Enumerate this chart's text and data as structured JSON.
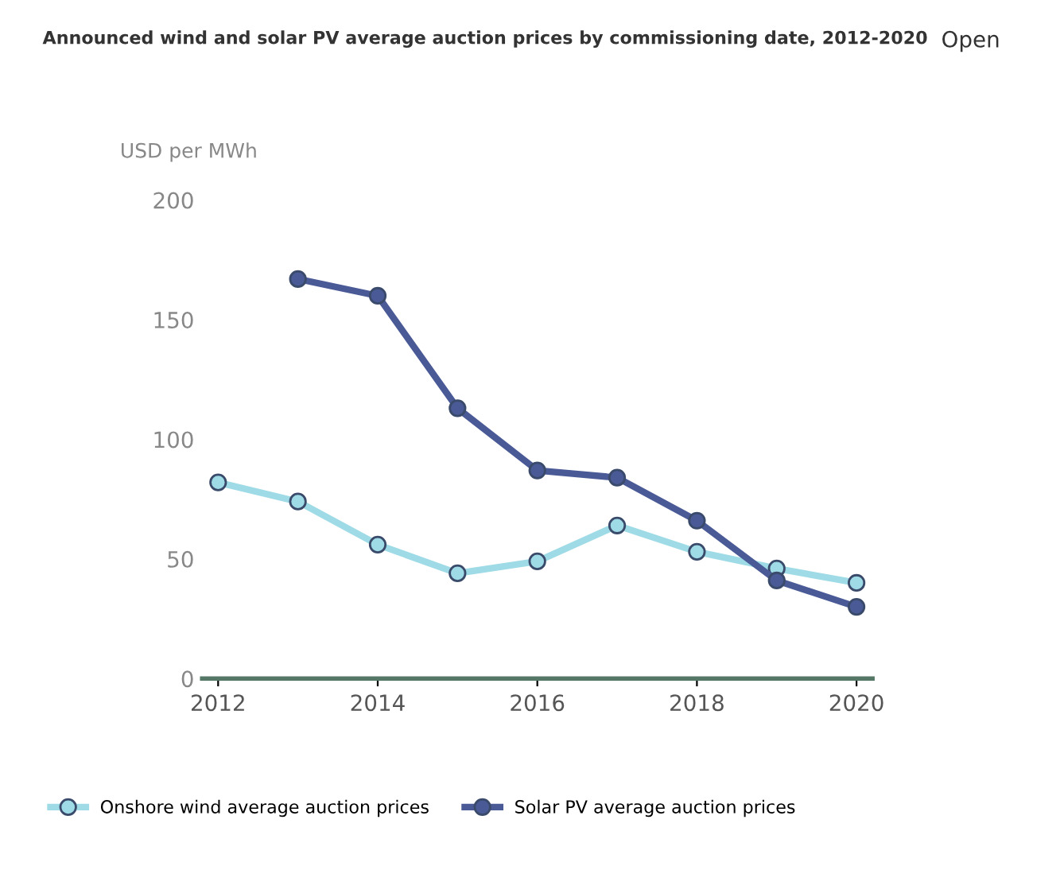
{
  "chart_data": {
    "type": "line",
    "title": "Announced wind and solar PV average auction prices by commissioning date, 2012-2020",
    "ylabel": "USD per MWh",
    "x": [
      2012,
      2013,
      2014,
      2015,
      2016,
      2017,
      2018,
      2019,
      2020
    ],
    "series": [
      {
        "name": "Onshore wind average auction prices",
        "color": "#9fdbe6",
        "values": [
          82,
          74,
          56,
          44,
          49,
          64,
          53,
          46,
          40
        ]
      },
      {
        "name": "Solar PV average auction prices",
        "color": "#4a5a96",
        "values": [
          null,
          167,
          160,
          113,
          87,
          84,
          66,
          41,
          30
        ]
      }
    ],
    "xlim": [
      2011.8,
      2020.2
    ],
    "xticks": [
      2012,
      2014,
      2016,
      2018,
      2020
    ],
    "ylim": [
      0,
      200
    ],
    "yticks": [
      0,
      50,
      100,
      150,
      200
    ],
    "grid": false,
    "legend": "bottom left",
    "marker": "circle",
    "line_style": "solid",
    "annotations": [
      "Open"
    ]
  }
}
